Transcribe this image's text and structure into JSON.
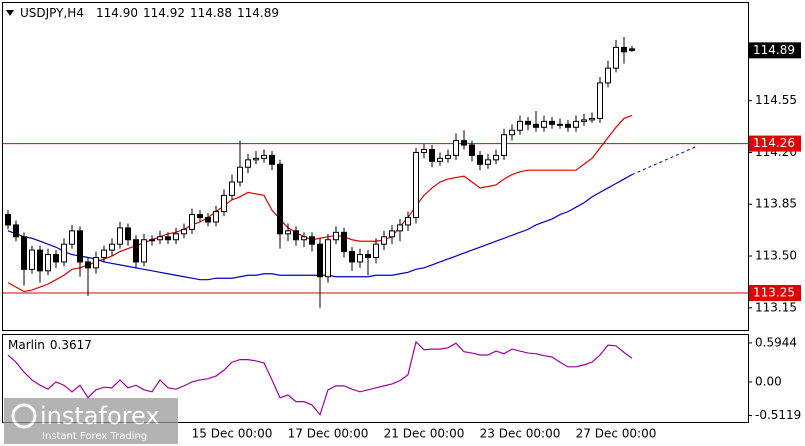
{
  "chart_data": [
    {
      "type": "candlestick",
      "title": "USDJPY,H4",
      "last_labels": [
        "114.90",
        "114.92",
        "114.88",
        "114.89"
      ],
      "categories": [
        null,
        null,
        null,
        null,
        null,
        null,
        null,
        null,
        null,
        null,
        null,
        null,
        null,
        null,
        null,
        null,
        null,
        null,
        null,
        null,
        null,
        null,
        null,
        null,
        null,
        null,
        null,
        null,
        "15 Dec 00:00",
        null,
        null,
        null,
        null,
        null,
        null,
        null,
        null,
        null,
        null,
        null,
        "17 Dec 00:00",
        null,
        null,
        null,
        null,
        null,
        null,
        null,
        null,
        null,
        null,
        null,
        "21 Dec 00:00",
        null,
        null,
        null,
        null,
        null,
        null,
        null,
        null,
        null,
        null,
        null,
        "23 Dec 00:00",
        null,
        null,
        null,
        null,
        null,
        null,
        null,
        null,
        null,
        null,
        null,
        "27 Dec 00:00",
        null,
        null
      ],
      "open": [
        113.78,
        113.71,
        113.63,
        113.41,
        113.54,
        113.4,
        113.51,
        113.46,
        113.58,
        113.67,
        113.46,
        113.42,
        113.49,
        113.54,
        113.58,
        113.69,
        113.61,
        113.46,
        113.61,
        113.61,
        113.63,
        113.61,
        113.65,
        113.68,
        113.78,
        113.76,
        113.73,
        113.8,
        113.91,
        114.0,
        114.1,
        114.15,
        114.16,
        114.18,
        114.12,
        113.65,
        113.67,
        113.61,
        113.63,
        113.58,
        113.36,
        113.61,
        113.66,
        113.53,
        113.46,
        113.51,
        113.49,
        113.58,
        113.63,
        113.67,
        113.71,
        113.76,
        114.2,
        114.22,
        114.14,
        114.16,
        114.18,
        114.28,
        114.25,
        114.18,
        114.12,
        114.15,
        114.18,
        114.32,
        114.35,
        114.41,
        114.39,
        114.37,
        114.41,
        114.39,
        114.39,
        114.37,
        114.41,
        114.42,
        114.43,
        114.67,
        114.77,
        114.91,
        114.9
      ],
      "high": [
        113.81,
        113.74,
        113.66,
        113.57,
        113.57,
        113.55,
        113.54,
        113.62,
        113.71,
        113.7,
        113.49,
        113.53,
        113.57,
        113.62,
        113.73,
        113.72,
        113.64,
        113.65,
        113.64,
        113.67,
        113.66,
        113.69,
        113.72,
        113.82,
        113.81,
        113.79,
        113.84,
        113.95,
        114.05,
        114.28,
        114.19,
        114.21,
        114.22,
        114.21,
        114.15,
        113.72,
        113.7,
        113.66,
        113.66,
        113.62,
        113.65,
        113.7,
        113.69,
        113.56,
        113.55,
        113.54,
        113.62,
        113.67,
        113.71,
        113.75,
        113.8,
        114.23,
        114.26,
        114.25,
        114.2,
        114.22,
        114.33,
        114.35,
        114.28,
        114.21,
        114.19,
        114.22,
        114.36,
        114.39,
        114.45,
        114.44,
        114.48,
        114.45,
        114.44,
        114.43,
        114.42,
        114.45,
        114.46,
        114.47,
        114.71,
        114.82,
        114.96,
        114.98,
        114.92
      ],
      "low": [
        113.68,
        113.6,
        113.3,
        113.38,
        113.32,
        113.37,
        113.42,
        113.43,
        113.55,
        113.36,
        113.23,
        113.38,
        113.46,
        113.5,
        113.55,
        113.57,
        113.42,
        113.43,
        113.57,
        113.58,
        113.58,
        113.58,
        113.62,
        113.65,
        113.73,
        113.7,
        113.7,
        113.77,
        113.88,
        113.97,
        114.06,
        114.12,
        114.13,
        114.08,
        113.55,
        113.6,
        113.57,
        113.56,
        113.53,
        113.15,
        113.32,
        113.58,
        113.49,
        113.4,
        113.42,
        113.37,
        113.45,
        113.54,
        113.58,
        113.6,
        113.67,
        113.72,
        114.16,
        114.1,
        114.11,
        114.13,
        114.15,
        114.22,
        114.14,
        114.08,
        114.09,
        114.12,
        114.15,
        114.28,
        114.32,
        114.35,
        114.34,
        114.34,
        114.36,
        114.36,
        114.34,
        114.34,
        114.38,
        114.4,
        114.4,
        114.64,
        114.74,
        114.8,
        114.88
      ],
      "close": [
        113.71,
        113.63,
        113.41,
        113.54,
        113.4,
        113.51,
        113.46,
        113.58,
        113.67,
        113.46,
        113.42,
        113.49,
        113.54,
        113.58,
        113.69,
        113.61,
        113.46,
        113.61,
        113.61,
        113.63,
        113.61,
        113.65,
        113.68,
        113.78,
        113.76,
        113.73,
        113.8,
        113.91,
        114.0,
        114.1,
        114.15,
        114.16,
        114.18,
        114.12,
        113.65,
        113.67,
        113.61,
        113.63,
        113.58,
        113.36,
        113.61,
        113.66,
        113.53,
        113.46,
        113.51,
        113.49,
        113.58,
        113.63,
        113.67,
        113.71,
        113.76,
        114.2,
        114.22,
        114.14,
        114.16,
        114.18,
        114.28,
        114.25,
        114.18,
        114.12,
        114.15,
        114.18,
        114.32,
        114.35,
        114.41,
        114.39,
        114.37,
        114.41,
        114.39,
        114.39,
        114.37,
        114.41,
        114.42,
        114.43,
        114.67,
        114.77,
        114.91,
        114.88,
        114.89
      ],
      "up_color": "#ffffff",
      "down_color": "#000000",
      "series": [
        {
          "color": "#e00000",
          "values": [
            113.32,
            113.29,
            113.26,
            113.27,
            113.29,
            113.31,
            113.34,
            113.37,
            113.41,
            113.42,
            113.44,
            113.46,
            113.48,
            113.5,
            113.53,
            113.55,
            113.57,
            113.59,
            113.61,
            113.63,
            113.65,
            113.66,
            113.68,
            113.71,
            113.73,
            113.76,
            113.8,
            113.84,
            113.88,
            113.9,
            113.93,
            113.92,
            113.91,
            113.81,
            113.75,
            113.69,
            113.66,
            113.63,
            113.61,
            113.62,
            113.63,
            113.64,
            113.63,
            113.61,
            113.6,
            113.6,
            113.6,
            113.61,
            113.63,
            113.7,
            113.76,
            113.84,
            113.91,
            113.96,
            114.0,
            114.02,
            114.03,
            114.04,
            114.0,
            113.96,
            113.97,
            113.98,
            114.02,
            114.05,
            114.07,
            114.08,
            114.08,
            114.08,
            114.08,
            114.08,
            114.08,
            114.08,
            114.12,
            114.16,
            114.23,
            114.3,
            114.37,
            114.43,
            114.45
          ]
        },
        {
          "color": "#0000c0",
          "dashed_extension": true,
          "values": [
            113.67,
            113.65,
            113.63,
            113.62,
            113.6,
            113.58,
            113.56,
            113.53,
            113.51,
            113.5,
            113.49,
            113.48,
            113.46,
            113.45,
            113.44,
            113.43,
            113.42,
            113.41,
            113.4,
            113.39,
            113.38,
            113.37,
            113.36,
            113.35,
            113.34,
            113.34,
            113.35,
            113.35,
            113.35,
            113.36,
            113.37,
            113.37,
            113.38,
            113.38,
            113.37,
            113.37,
            113.37,
            113.37,
            113.37,
            113.37,
            113.37,
            113.36,
            113.36,
            113.36,
            113.36,
            113.36,
            113.37,
            113.37,
            113.37,
            113.38,
            113.39,
            113.41,
            113.42,
            113.44,
            113.46,
            113.48,
            113.5,
            113.52,
            113.54,
            113.56,
            113.58,
            113.6,
            113.62,
            113.64,
            113.66,
            113.68,
            113.71,
            113.73,
            113.75,
            113.78,
            113.8,
            113.83,
            113.86,
            113.9,
            113.93,
            113.96,
            113.99,
            114.02,
            114.05
          ]
        }
      ],
      "levels": [
        {
          "value": 114.26,
          "color": "#e00000"
        },
        {
          "value": 113.25,
          "color": "#e00000"
        }
      ],
      "ylim": [
        113.0,
        115.21
      ],
      "yticks": [
        114.55,
        {
          "value": 114.2,
          "label": "114.20"
        },
        113.85,
        {
          "value": 113.5,
          "label": "113.50"
        },
        113.15
      ]
    },
    {
      "type": "line",
      "title": "Marlin",
      "current": 0.3617,
      "color": "#a000a0",
      "values": [
        0.41,
        0.3,
        0.15,
        0.03,
        -0.05,
        -0.11,
        0.0,
        -0.05,
        -0.15,
        -0.05,
        -0.24,
        -0.12,
        -0.08,
        -0.09,
        0.03,
        -0.09,
        -0.05,
        -0.12,
        -0.15,
        0.03,
        -0.09,
        -0.11,
        -0.06,
        0.0,
        0.03,
        0.05,
        0.09,
        0.18,
        0.3,
        0.34,
        0.34,
        0.32,
        0.29,
        0.03,
        -0.24,
        -0.2,
        -0.3,
        -0.3,
        -0.35,
        -0.5,
        -0.12,
        -0.06,
        -0.06,
        -0.11,
        -0.15,
        -0.12,
        -0.09,
        -0.06,
        -0.03,
        0.02,
        0.11,
        0.61,
        0.49,
        0.5,
        0.5,
        0.52,
        0.59,
        0.46,
        0.44,
        0.41,
        0.41,
        0.47,
        0.43,
        0.5,
        0.47,
        0.44,
        0.43,
        0.4,
        0.38,
        0.3,
        0.23,
        0.23,
        0.26,
        0.3,
        0.41,
        0.56,
        0.55,
        0.45,
        0.36
      ],
      "ylim": [
        -0.61,
        0.73
      ],
      "yticks": [
        0.5944,
        {
          "value": 0,
          "label": "0.00"
        },
        -0.5119
      ]
    }
  ],
  "watermark": {
    "brand": "instaforex",
    "tagline": "Instant Forex Trading"
  }
}
